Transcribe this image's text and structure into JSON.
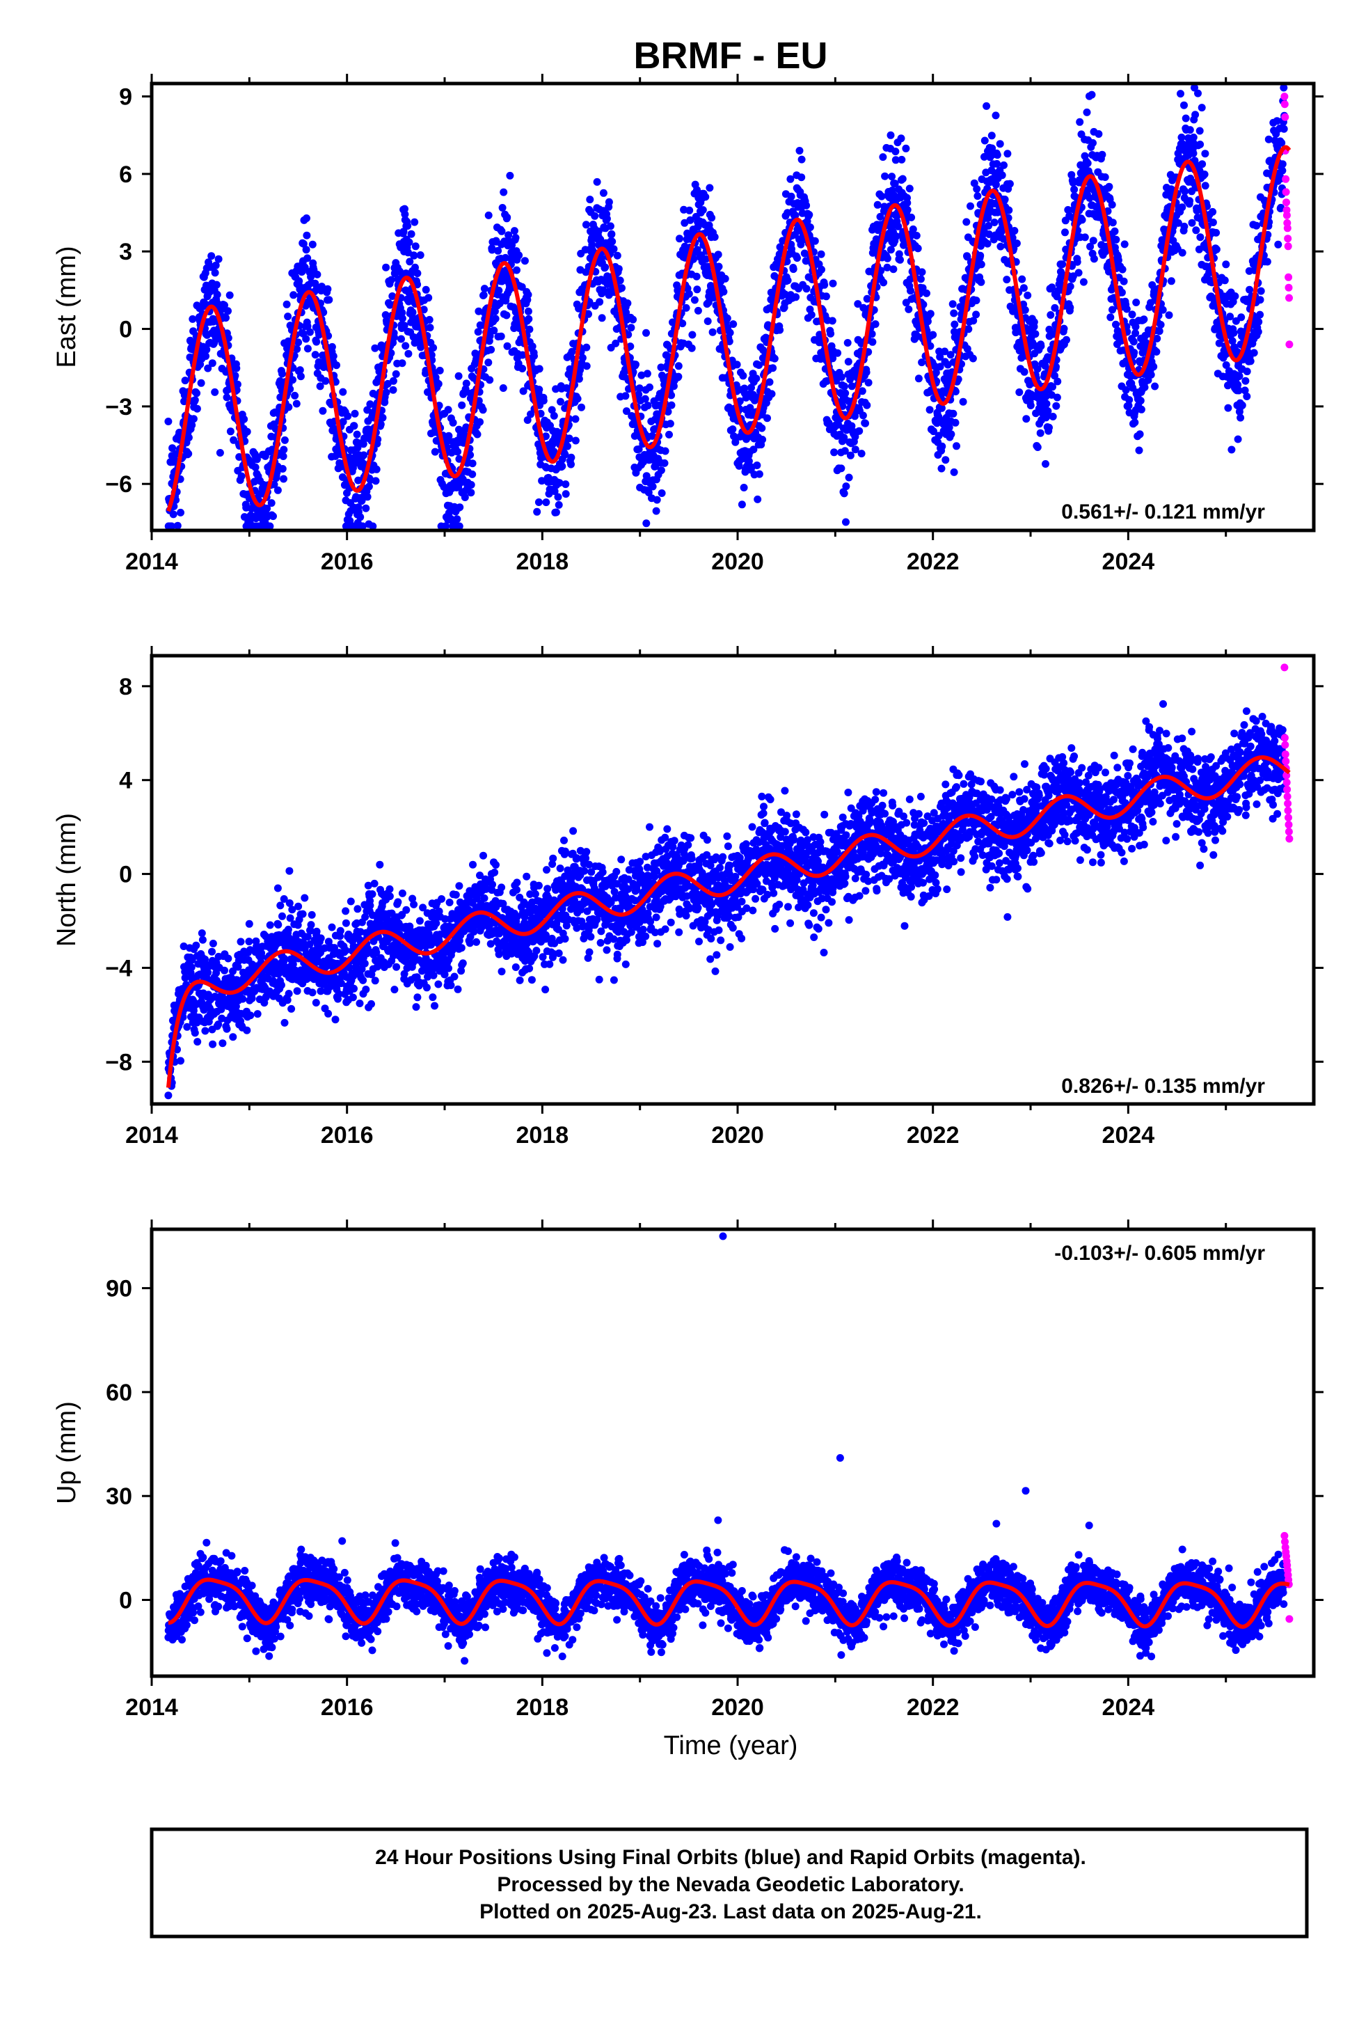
{
  "colors": {
    "final_orbits": "#0000ff",
    "rapid_orbits": "#ff00ff",
    "model": "#ff0000",
    "frame": "#000000"
  },
  "chart_data": {
    "title": "BRMF - EU",
    "type": "scatter",
    "xlabel": "Time (year)",
    "x_ticks": [
      "2014",
      "2016",
      "2018",
      "2020",
      "2022",
      "2024"
    ],
    "panels": [
      {
        "type": "scatter",
        "ylabel": "East (mm)",
        "xlim": [
          2014.0,
          2025.9
        ],
        "ylim": [
          -7.8,
          9.5
        ],
        "y_ticks": [
          9,
          6,
          3,
          0,
          -3,
          -6
        ],
        "rate_label": "0.561+/- 0.121 mm/yr",
        "model": {
          "intercept": -3.35,
          "t0": 2014.2,
          "rate": 0.561,
          "sin": -2.5,
          "cos": -3.1,
          "sin2": 0.0,
          "cos2": 0.0
        },
        "scatter_sd": 1.25,
        "rapid_values": [
          9.0,
          8.7,
          8.2,
          6.9,
          5.8,
          5.3,
          4.9,
          4.6,
          4.4,
          4.1,
          3.9,
          3.5,
          3.2,
          2.0,
          1.6,
          1.2,
          -0.6
        ],
        "series": [
          {
            "name": "Final Orbits (blue)",
            "x_range": [
              2014.17,
              2025.6
            ]
          },
          {
            "name": "Rapid Orbits (magenta)",
            "x_range": [
              2025.6,
              2025.65
            ]
          },
          {
            "name": "Model (red)"
          }
        ]
      },
      {
        "type": "scatter",
        "ylabel": "North (mm)",
        "xlim": [
          2014.0,
          2025.9
        ],
        "ylim": [
          -9.8,
          9.3
        ],
        "y_ticks": [
          8,
          4,
          0,
          -4,
          -8
        ],
        "rate_label": "0.826+/- 0.135 mm/yr",
        "model": {
          "intercept": -4.9,
          "t0": 2014.2,
          "rate": 0.826,
          "sin": 0.55,
          "cos": -0.35,
          "sin2": 0.0,
          "cos2": 0.0
        },
        "transient": {
          "amplitude": -3.5,
          "tau": 0.12
        },
        "scatter_sd": 0.95,
        "rapid_values": [
          8.8,
          5.8,
          5.5,
          5.1,
          4.8,
          4.5,
          4.2,
          3.9,
          3.6,
          3.3,
          3.0,
          2.7,
          2.4,
          2.1,
          1.8,
          1.5
        ],
        "series": [
          {
            "name": "Final Orbits (blue)",
            "x_range": [
              2014.17,
              2025.6
            ]
          },
          {
            "name": "Rapid Orbits (magenta)",
            "x_range": [
              2025.6,
              2025.65
            ]
          },
          {
            "name": "Model (red)"
          }
        ]
      },
      {
        "type": "scatter",
        "ylabel": "Up (mm)",
        "xlim": [
          2014.0,
          2025.9
        ],
        "ylim": [
          -22,
          107
        ],
        "y_ticks": [
          90,
          60,
          30,
          0
        ],
        "rate_label": "-0.103+/- 0.605 mm/yr",
        "model": {
          "intercept": 0.8,
          "t0": 2014.2,
          "rate": -0.103,
          "sin": -5.0,
          "cos": -3.4,
          "sin2": -1.0,
          "cos2": 1.0
        },
        "scatter_sd": 3.5,
        "outliers": [
          [
            2019.85,
            105
          ],
          [
            2021.05,
            41
          ],
          [
            2022.95,
            31.5
          ],
          [
            2019.8,
            23
          ],
          [
            2022.65,
            22
          ],
          [
            2023.6,
            21.5
          ],
          [
            2015.95,
            17
          ]
        ],
        "rapid_values": [
          18.5,
          16.8,
          15.2,
          13.8,
          12.6,
          11.2,
          10.0,
          8.6,
          7.2,
          5.8,
          4.5,
          -5.5
        ],
        "series": [
          {
            "name": "Final Orbits (blue)",
            "x_range": [
              2014.17,
              2025.6
            ]
          },
          {
            "name": "Rapid Orbits (magenta)",
            "x_range": [
              2025.6,
              2025.65
            ]
          },
          {
            "name": "Model (red)"
          }
        ]
      }
    ]
  },
  "footer": {
    "line1": "24 Hour Positions Using Final Orbits (blue) and Rapid Orbits (magenta).",
    "line2": "Processed by the Nevada Geodetic Laboratory.",
    "line3": "Plotted on 2025-Aug-23. Last data on 2025-Aug-21."
  }
}
